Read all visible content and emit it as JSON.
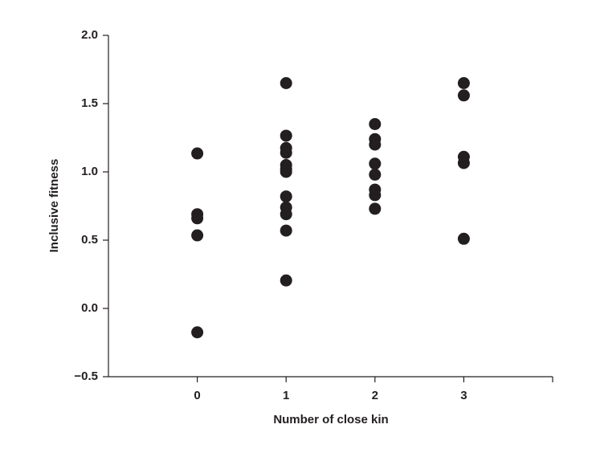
{
  "chart_data": {
    "type": "scatter",
    "x_label": "Number of close kin",
    "y_label": "Inclusive fitness",
    "xlim": [
      -1,
      4
    ],
    "xticks": [
      0,
      1,
      2,
      3
    ],
    "ylim": [
      -0.5,
      2.0
    ],
    "yticks": [
      {
        "value": 2.0,
        "label": "2.0"
      },
      {
        "value": 1.5,
        "label": "1.5"
      },
      {
        "value": 1.0,
        "label": "1.0"
      },
      {
        "value": 0.5,
        "label": "0.5"
      },
      {
        "value": 0.0,
        "label": "0.0"
      },
      {
        "value": -0.5,
        "label": "−0.5"
      }
    ],
    "color": "#231f20",
    "x": [
      0,
      0,
      0,
      0,
      0,
      1,
      1,
      1,
      1,
      1,
      1,
      1,
      1,
      1,
      1,
      1,
      1,
      2,
      2,
      2,
      2,
      2,
      2,
      2,
      2,
      3,
      3,
      3,
      3,
      3
    ],
    "values": [
      1.135,
      0.69,
      0.66,
      0.535,
      -0.175,
      1.65,
      1.265,
      1.175,
      1.14,
      1.05,
      1.02,
      1.0,
      0.82,
      0.74,
      0.69,
      0.57,
      0.205,
      1.35,
      1.24,
      1.2,
      1.06,
      0.98,
      0.87,
      0.83,
      0.73,
      1.65,
      1.56,
      1.11,
      1.065,
      0.51
    ]
  }
}
